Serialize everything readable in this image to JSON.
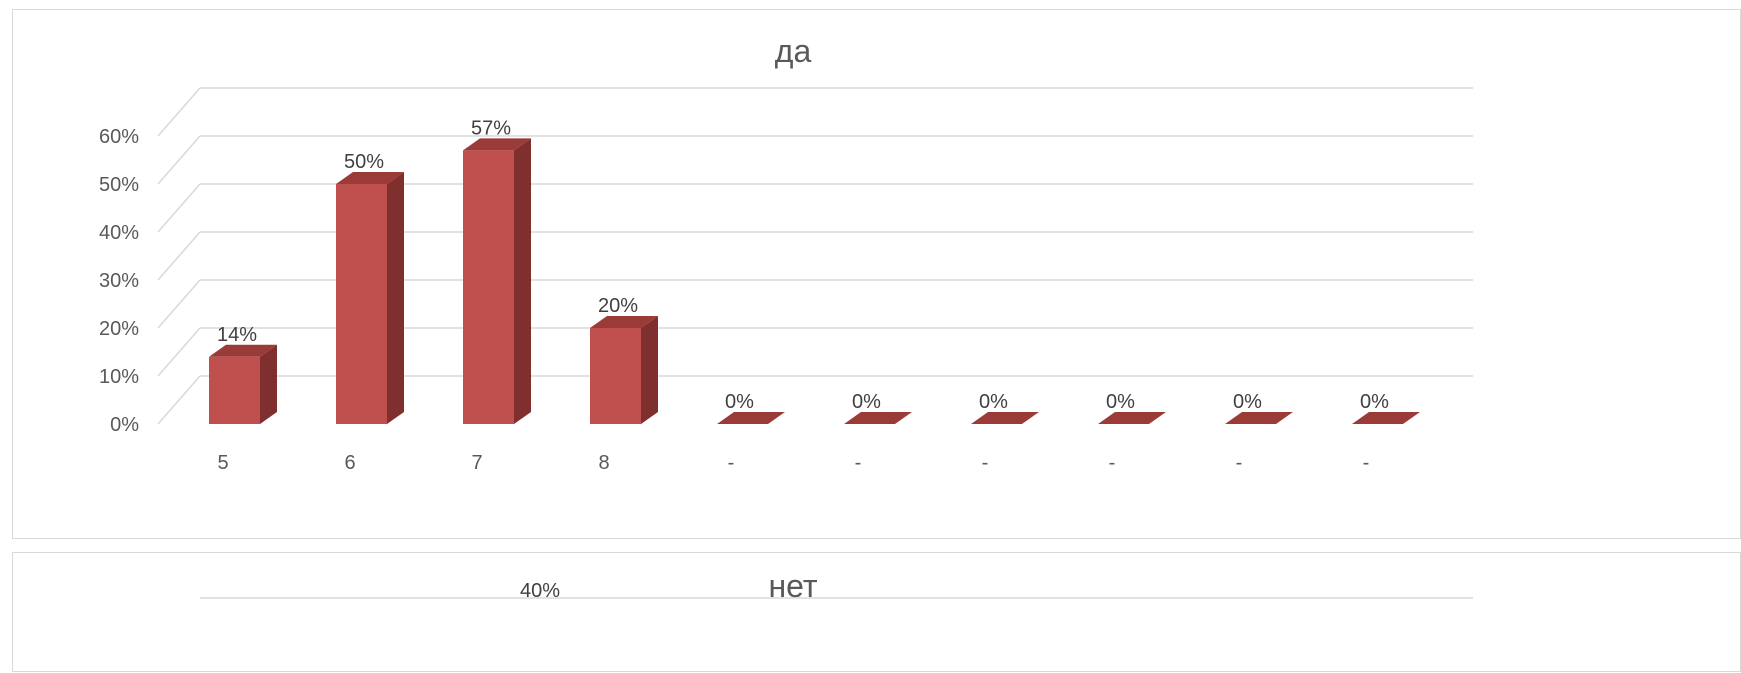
{
  "colors": {
    "bar_front": "#c0504d",
    "bar_side": "#7f2f2d",
    "bar_top": "#9b3b38",
    "grid": "#d9d9d9",
    "text": "#595959"
  },
  "chart_data": [
    {
      "type": "bar",
      "title": "да",
      "categories": [
        "5",
        "6",
        "7",
        "8",
        "-",
        "-",
        "-",
        "-",
        "-",
        "-"
      ],
      "values": [
        0.14,
        0.5,
        0.57,
        0.2,
        0,
        0,
        0,
        0,
        0,
        0
      ],
      "data_labels": [
        "14%",
        "50%",
        "57%",
        "20%",
        "0%",
        "0%",
        "0%",
        "0%",
        "0%",
        "0%"
      ],
      "yticks": [
        "0%",
        "10%",
        "20%",
        "30%",
        "40%",
        "50%",
        "60%"
      ],
      "ylim": [
        0,
        0.6
      ],
      "grid": true,
      "style": "3d-column"
    },
    {
      "type": "bar",
      "title": "нет",
      "data_labels": [
        "40%"
      ],
      "style": "3d-column"
    }
  ]
}
